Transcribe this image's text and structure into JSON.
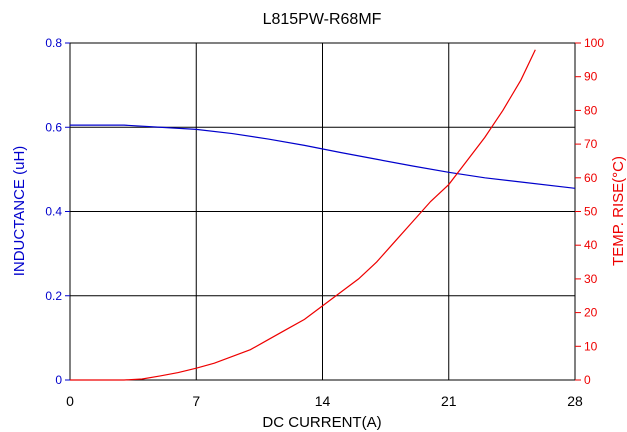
{
  "chart_data": {
    "type": "line",
    "title": "L815PW-R68MF",
    "xlabel": "DC CURRENT(A)",
    "ylabel_left": "INDUCTANCE (uH)",
    "ylabel_right": "TEMP. RISE(°C)",
    "xlim": [
      0,
      28
    ],
    "ylim_left": [
      0,
      0.8
    ],
    "ylim_right": [
      0,
      100
    ],
    "xticks": [
      "0",
      "7",
      "14",
      "21",
      "28"
    ],
    "yticks_left": [
      "0",
      "0.2",
      "0.4",
      "0.6",
      "0.8"
    ],
    "yticks_right": [
      "0",
      "10",
      "20",
      "30",
      "40",
      "50",
      "60",
      "70",
      "80",
      "90",
      "100"
    ],
    "grid": true,
    "colors": {
      "inductance": "#0000cc",
      "temp": "#ee0000",
      "grid": "#000000"
    },
    "series": [
      {
        "axis": "left",
        "x": [
          0,
          3,
          5,
          7,
          9,
          11,
          13,
          15,
          17,
          19,
          21,
          23,
          25,
          28
        ],
        "values": [
          0.605,
          0.605,
          0.6,
          0.595,
          0.585,
          0.572,
          0.557,
          0.54,
          0.524,
          0.508,
          0.493,
          0.48,
          0.47,
          0.455
        ]
      },
      {
        "axis": "right",
        "x": [
          0,
          3,
          4,
          5,
          6,
          7,
          8,
          9,
          10,
          11,
          12,
          13,
          14,
          15,
          16,
          17,
          18,
          19,
          20,
          21,
          22,
          23,
          24,
          25,
          25.8
        ],
        "values": [
          0,
          0,
          0.3,
          1.2,
          2.2,
          3.5,
          5,
          7,
          9,
          12,
          15,
          18,
          22,
          26,
          30,
          35,
          41,
          47,
          53,
          58,
          65,
          72,
          80,
          89,
          98
        ]
      }
    ]
  }
}
